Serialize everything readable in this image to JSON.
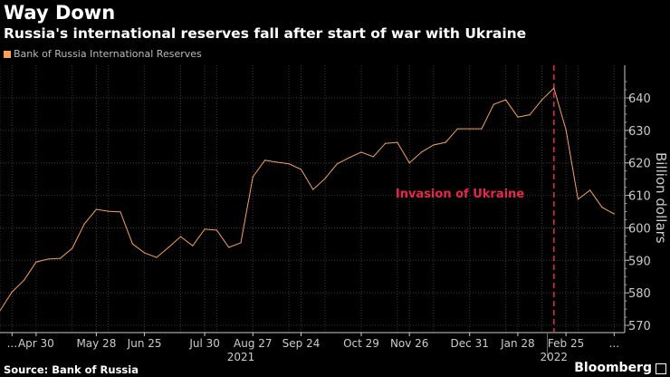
{
  "header": {
    "title": "Way Down",
    "subtitle": "Russia's international reserves fall after start of war with Ukraine"
  },
  "footer": {
    "source": "Source: Bank of Russia",
    "brand": "Bloomberg"
  },
  "chart_data": {
    "type": "line",
    "title": "Way Down",
    "subtitle": "Russia's international reserves fall after start of war with Ukraine",
    "legend": [
      {
        "name": "Bank of Russia International Reserves",
        "color": "#f5a25a",
        "placement": "top-left"
      }
    ],
    "ylabel": "Billion dollars",
    "ylim": [
      567,
      650
    ],
    "yticks": [
      570,
      580,
      590,
      600,
      610,
      620,
      630,
      640
    ],
    "grid": true,
    "frequency": "weekly",
    "xticks": [
      {
        "index": 1,
        "label": "..."
      },
      {
        "index": 3,
        "label": "Apr 30"
      },
      {
        "index": 8,
        "label": "May 28"
      },
      {
        "index": 12,
        "label": "Jun 25"
      },
      {
        "index": 17,
        "label": "Jul 30"
      },
      {
        "index": 21,
        "label": "Aug 27"
      },
      {
        "index": 25,
        "label": "Sep 24"
      },
      {
        "index": 30,
        "label": "Oct 29"
      },
      {
        "index": 34,
        "label": "Nov 26"
      },
      {
        "index": 39,
        "label": "Dec 31"
      },
      {
        "index": 43,
        "label": "Jan 28"
      },
      {
        "index": 47,
        "label": "Feb 25"
      },
      {
        "index": 51,
        "label": "..."
      }
    ],
    "years": [
      {
        "index": 20,
        "label": "2021"
      },
      {
        "index": 46,
        "label": "2022"
      }
    ],
    "series": [
      {
        "name": "Bank of Russia International Reserves",
        "color": "#f5a25a",
        "values": [
          574.5,
          580.3,
          583.9,
          589.5,
          590.4,
          590.6,
          593.7,
          601.2,
          605.7,
          605.1,
          604.9,
          595.1,
          592.3,
          590.9,
          594.0,
          597.3,
          594.5,
          599.6,
          599.3,
          594.0,
          595.4,
          615.7,
          620.8,
          620.2,
          619.7,
          618.0,
          611.8,
          615.2,
          619.7,
          621.6,
          623.3,
          621.9,
          626.0,
          626.3,
          620.0,
          623.3,
          625.5,
          626.3,
          630.5,
          630.5,
          630.5,
          638.0,
          639.4,
          634.1,
          634.8,
          639.4,
          643.0,
          630.2,
          608.8,
          611.6,
          606.3,
          604.3
        ]
      }
    ],
    "annotations": [
      {
        "index": 46,
        "label": "Invasion of Ukraine",
        "color": "#e8274b",
        "style": "dashed-vertical"
      }
    ]
  }
}
